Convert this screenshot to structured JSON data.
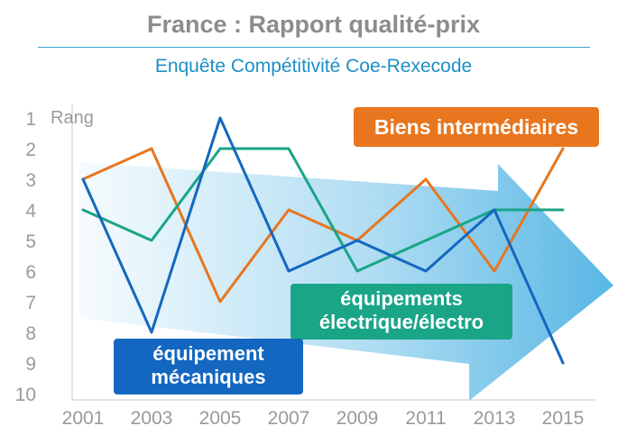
{
  "header": {
    "title": "France : Rapport qualité-prix",
    "subtitle": "Enquête Compétitivité Coe-Rexecode"
  },
  "chart_data": {
    "type": "line",
    "title": "France : Rapport qualité-prix",
    "subtitle": "Enquête Compétitivité Coe-Rexecode",
    "ylabel": "Rang",
    "xlabel": "",
    "y_inverted": true,
    "ylim": [
      1,
      10
    ],
    "y_ticks": [
      "1",
      "2",
      "3",
      "4",
      "5",
      "6",
      "7",
      "8",
      "9",
      "10"
    ],
    "x_ticks": [
      "2001",
      "2003",
      "2005",
      "2007",
      "2009",
      "2011",
      "2013",
      "2015"
    ],
    "x": [
      2001,
      2003,
      2005,
      2007,
      2009,
      2011,
      2013,
      2015
    ],
    "grid": false,
    "series": [
      {
        "name": "Biens intermédiaires",
        "color": "#e8761e",
        "values": [
          3,
          2,
          7,
          4,
          5,
          3,
          6,
          2
        ]
      },
      {
        "name": "équipements électrique/électro",
        "color": "#1aa587",
        "values": [
          4,
          5,
          2,
          2,
          6,
          5,
          4,
          4
        ]
      },
      {
        "name": "équipement mécaniques",
        "color": "#1467c0",
        "values": [
          3,
          8,
          1,
          6,
          5,
          6,
          4,
          9
        ]
      }
    ],
    "labels": {
      "orange": "Biens intermédiaires",
      "green": [
        "équipements",
        "électrique/électro"
      ],
      "blue": [
        "équipement",
        "mécaniques"
      ]
    },
    "arrow_color": "#4fb3e3"
  }
}
